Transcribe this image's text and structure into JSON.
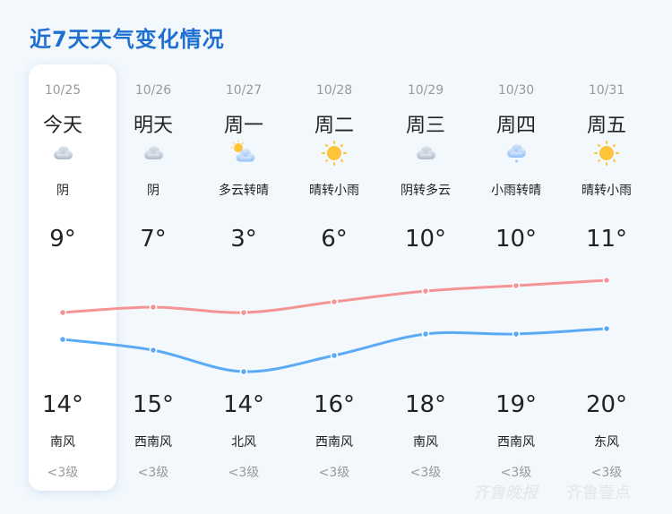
{
  "title": "近7天天气变化情况",
  "colors": {
    "title": "#1f6fd1",
    "high_line": "#f59494",
    "low_line": "#5aaaf5",
    "background": "#f3f8fd"
  },
  "days": [
    {
      "date": "10/25",
      "day": "今天",
      "icon": "overcast-icon",
      "desc": "阴",
      "low": "9°",
      "high": "14°",
      "wind": "南风",
      "level": "<3级"
    },
    {
      "date": "10/26",
      "day": "明天",
      "icon": "overcast-icon",
      "desc": "阴",
      "low": "7°",
      "high": "15°",
      "wind": "西南风",
      "level": "<3级"
    },
    {
      "date": "10/27",
      "day": "周一",
      "icon": "partly-cloudy-icon",
      "desc": "多云转晴",
      "low": "3°",
      "high": "14°",
      "wind": "北风",
      "level": "<3级"
    },
    {
      "date": "10/28",
      "day": "周二",
      "icon": "sunny-icon",
      "desc": "晴转小雨",
      "low": "6°",
      "high": "16°",
      "wind": "西南风",
      "level": "<3级"
    },
    {
      "date": "10/29",
      "day": "周三",
      "icon": "overcast-icon",
      "desc": "阴转多云",
      "low": "10°",
      "high": "18°",
      "wind": "南风",
      "level": "<3级"
    },
    {
      "date": "10/30",
      "day": "周四",
      "icon": "light-rain-icon",
      "desc": "小雨转晴",
      "low": "10°",
      "high": "19°",
      "wind": "西南风",
      "level": "<3级"
    },
    {
      "date": "10/31",
      "day": "周五",
      "icon": "sunny-icon",
      "desc": "晴转小雨",
      "low": "11°",
      "high": "20°",
      "wind": "东风",
      "level": "<3级"
    }
  ],
  "chart_data": {
    "type": "line",
    "categories": [
      "10/25",
      "10/26",
      "10/27",
      "10/28",
      "10/29",
      "10/30",
      "10/31"
    ],
    "series": [
      {
        "values": [
          14,
          15,
          14,
          16,
          18,
          19,
          20
        ],
        "color": "#f59494"
      },
      {
        "values": [
          9,
          7,
          3,
          6,
          10,
          10,
          11
        ],
        "color": "#5aaaf5"
      }
    ]
  },
  "watermark": {
    "left": "齐鲁晚报",
    "right": "齐鲁壹点"
  }
}
